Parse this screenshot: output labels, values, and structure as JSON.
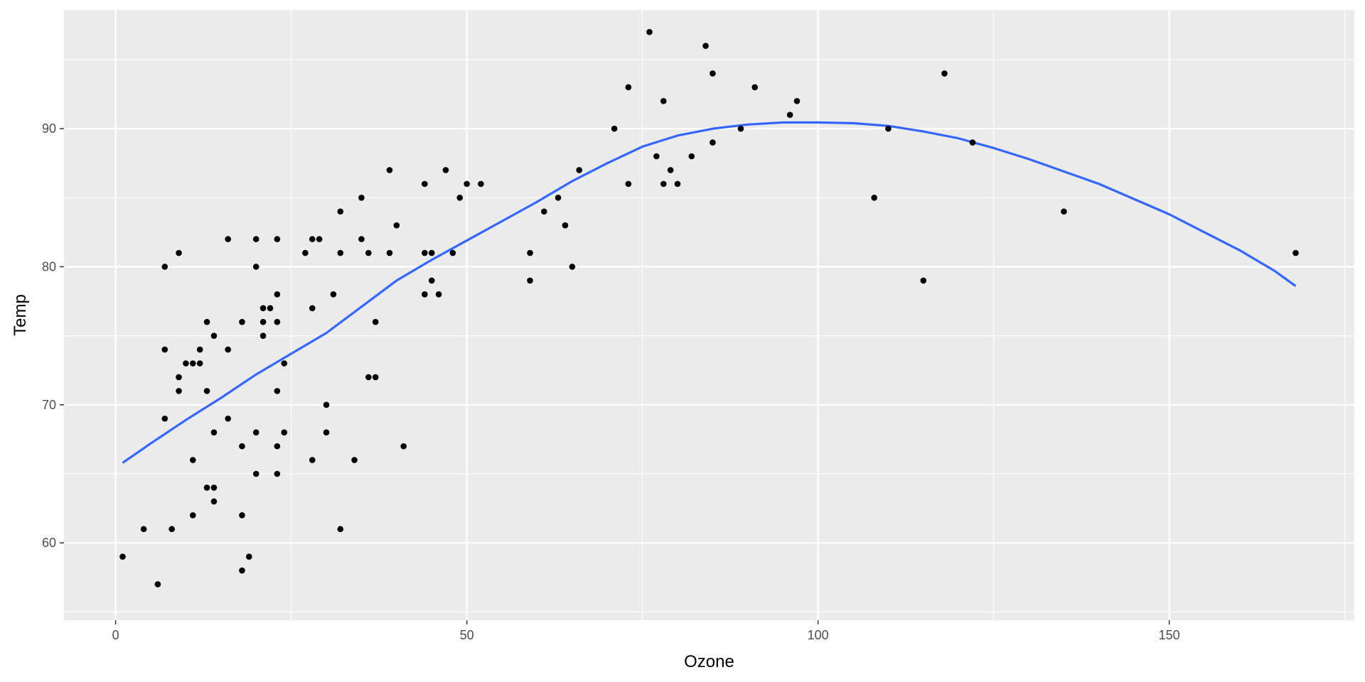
{
  "chart_data": {
    "type": "scatter",
    "xlabel": "Ozone",
    "ylabel": "Temp",
    "xlim": [
      -7.35,
      176.35
    ],
    "ylim": [
      54.4,
      98.6
    ],
    "x_ticks": [
      0,
      50,
      100,
      150
    ],
    "x_tick_labels": [
      "0",
      "50",
      "100",
      "150"
    ],
    "y_ticks": [
      60,
      70,
      80,
      90
    ],
    "y_tick_labels": [
      "60",
      "70",
      "80",
      "90"
    ],
    "grid": true,
    "panel_background": "#ebebeb",
    "grid_color": "#ffffff",
    "point_color": "#000000",
    "smooth_color": "#3366ff",
    "points": [
      [
        1,
        59
      ],
      [
        4,
        61
      ],
      [
        6,
        57
      ],
      [
        7,
        80
      ],
      [
        7,
        74
      ],
      [
        7,
        69
      ],
      [
        8,
        61
      ],
      [
        9,
        81
      ],
      [
        9,
        72
      ],
      [
        9,
        71
      ],
      [
        10,
        73
      ],
      [
        11,
        73
      ],
      [
        11,
        66
      ],
      [
        11,
        62
      ],
      [
        12,
        74
      ],
      [
        12,
        73
      ],
      [
        13,
        76
      ],
      [
        13,
        71
      ],
      [
        13,
        64
      ],
      [
        14,
        75
      ],
      [
        14,
        68
      ],
      [
        14,
        64
      ],
      [
        14,
        63
      ],
      [
        16,
        82
      ],
      [
        16,
        74
      ],
      [
        16,
        69
      ],
      [
        18,
        76
      ],
      [
        18,
        67
      ],
      [
        18,
        62
      ],
      [
        18,
        58
      ],
      [
        19,
        59
      ],
      [
        20,
        82
      ],
      [
        20,
        80
      ],
      [
        20,
        68
      ],
      [
        20,
        65
      ],
      [
        21,
        77
      ],
      [
        21,
        76
      ],
      [
        21,
        75
      ],
      [
        22,
        77
      ],
      [
        23,
        82
      ],
      [
        23,
        78
      ],
      [
        23,
        76
      ],
      [
        23,
        71
      ],
      [
        23,
        67
      ],
      [
        23,
        65
      ],
      [
        24,
        73
      ],
      [
        24,
        68
      ],
      [
        27,
        81
      ],
      [
        28,
        82
      ],
      [
        28,
        77
      ],
      [
        28,
        66
      ],
      [
        29,
        82
      ],
      [
        30,
        70
      ],
      [
        30,
        68
      ],
      [
        31,
        78
      ],
      [
        32,
        84
      ],
      [
        32,
        81
      ],
      [
        32,
        61
      ],
      [
        34,
        66
      ],
      [
        35,
        85
      ],
      [
        35,
        82
      ],
      [
        36,
        81
      ],
      [
        36,
        72
      ],
      [
        37,
        76
      ],
      [
        37,
        72
      ],
      [
        39,
        87
      ],
      [
        39,
        81
      ],
      [
        40,
        83
      ],
      [
        41,
        67
      ],
      [
        44,
        86
      ],
      [
        44,
        81
      ],
      [
        44,
        78
      ],
      [
        45,
        81
      ],
      [
        45,
        79
      ],
      [
        46,
        78
      ],
      [
        47,
        87
      ],
      [
        48,
        81
      ],
      [
        49,
        85
      ],
      [
        50,
        86
      ],
      [
        52,
        86
      ],
      [
        59,
        81
      ],
      [
        59,
        79
      ],
      [
        61,
        84
      ],
      [
        63,
        85
      ],
      [
        64,
        83
      ],
      [
        65,
        80
      ],
      [
        66,
        87
      ],
      [
        71,
        90
      ],
      [
        73,
        93
      ],
      [
        73,
        86
      ],
      [
        76,
        97
      ],
      [
        77,
        88
      ],
      [
        78,
        92
      ],
      [
        78,
        86
      ],
      [
        79,
        87
      ],
      [
        80,
        86
      ],
      [
        82,
        88
      ],
      [
        84,
        96
      ],
      [
        85,
        94
      ],
      [
        85,
        89
      ],
      [
        89,
        90
      ],
      [
        91,
        93
      ],
      [
        96,
        91
      ],
      [
        97,
        92
      ],
      [
        108,
        85
      ],
      [
        110,
        90
      ],
      [
        115,
        79
      ],
      [
        118,
        94
      ],
      [
        122,
        89
      ],
      [
        135,
        84
      ],
      [
        168,
        81
      ]
    ],
    "smooth_line": [
      [
        1,
        65.8
      ],
      [
        5,
        67.2
      ],
      [
        10,
        68.9
      ],
      [
        15,
        70.5
      ],
      [
        20,
        72.2
      ],
      [
        25,
        73.7
      ],
      [
        30,
        75.2
      ],
      [
        35,
        77.1
      ],
      [
        40,
        79.0
      ],
      [
        45,
        80.5
      ],
      [
        50,
        81.9
      ],
      [
        55,
        83.3
      ],
      [
        60,
        84.7
      ],
      [
        65,
        86.2
      ],
      [
        70,
        87.5
      ],
      [
        75,
        88.7
      ],
      [
        80,
        89.5
      ],
      [
        85,
        90.0
      ],
      [
        90,
        90.3
      ],
      [
        95,
        90.45
      ],
      [
        100,
        90.45
      ],
      [
        105,
        90.4
      ],
      [
        110,
        90.2
      ],
      [
        115,
        89.8
      ],
      [
        120,
        89.3
      ],
      [
        125,
        88.6
      ],
      [
        130,
        87.8
      ],
      [
        135,
        86.9
      ],
      [
        140,
        86.0
      ],
      [
        145,
        84.9
      ],
      [
        150,
        83.8
      ],
      [
        155,
        82.5
      ],
      [
        160,
        81.2
      ],
      [
        165,
        79.7
      ],
      [
        168,
        78.6
      ]
    ]
  }
}
